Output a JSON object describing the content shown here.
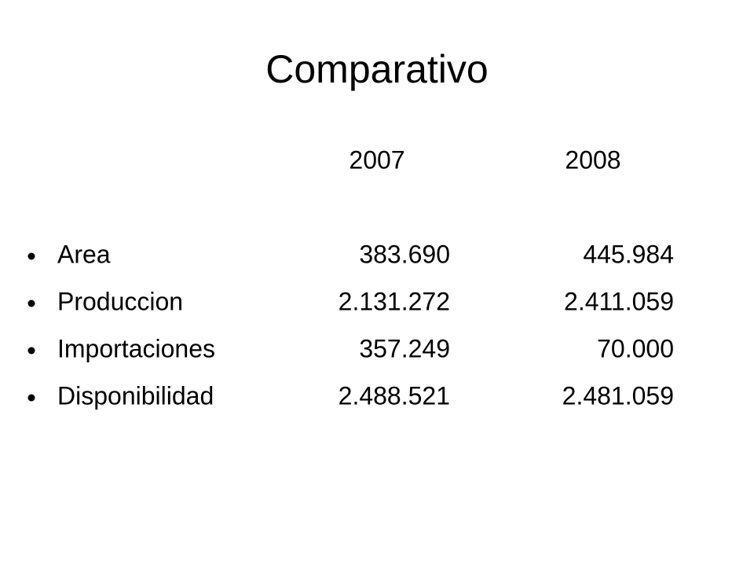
{
  "title": "Comparativo",
  "table": {
    "columns": [
      "2007",
      "2008"
    ],
    "rows": [
      {
        "label": "Area",
        "cells": [
          "383.690",
          "445.984"
        ]
      },
      {
        "label": "Produccion",
        "cells": [
          "2.131.272",
          "2.411.059"
        ]
      },
      {
        "label": "Importaciones",
        "cells": [
          "357.249",
          "70.000"
        ]
      },
      {
        "label": "Disponibilidad",
        "cells": [
          "2.488.521",
          "2.481.059"
        ]
      }
    ]
  }
}
